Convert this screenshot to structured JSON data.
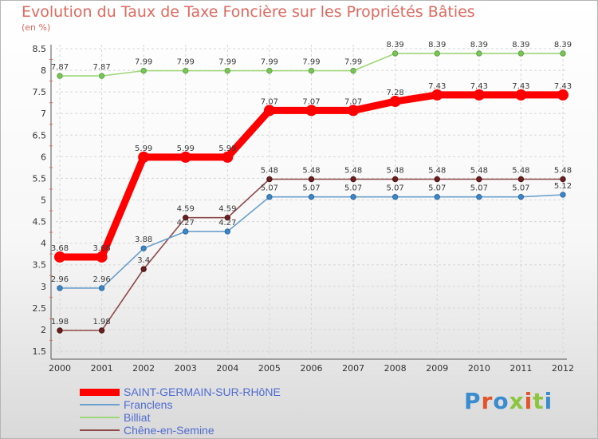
{
  "title": "Evolution du Taux de Taxe Foncière sur les Propriétés Bâties",
  "subtitle": "(en %)",
  "logo": {
    "text": "Proxiti",
    "letter_colors": [
      "#3a8ccf",
      "#e0552a",
      "#3a8ccf",
      "#8cc53f",
      "#e0552a",
      "#8cc53f",
      "#3a8ccf"
    ]
  },
  "chart_data": {
    "type": "line",
    "title": "Evolution du Taux de Taxe Foncière sur les Propriétés Bâties",
    "ylabel": "(en %)",
    "xlabel": "",
    "x": [
      "2000",
      "2001",
      "2002",
      "2003",
      "2004",
      "2005",
      "2006",
      "2007",
      "2008",
      "2009",
      "2010",
      "2011",
      "2012"
    ],
    "ylim": [
      1.5,
      8.5
    ],
    "yticks": [
      "1.5",
      "2",
      "2.5",
      "3",
      "3.5",
      "4",
      "4.5",
      "5",
      "5.5",
      "6",
      "6.5",
      "7",
      "7.5",
      "8",
      "8.5"
    ],
    "grid": true,
    "legend_position": "bottom-left",
    "series": [
      {
        "name": "SAINT-GERMAIN-SUR-RHôNE",
        "color": "#ff0000",
        "values": [
          3.68,
          3.68,
          5.99,
          5.99,
          5.99,
          7.07,
          7.07,
          7.07,
          7.28,
          7.43,
          7.43,
          7.43,
          7.43
        ],
        "labels": [
          "3.68",
          "3.68",
          "5.99",
          "5.99",
          "5.99",
          "7.07",
          "7.07",
          "7.07",
          "7.28",
          "7.43",
          "7.43",
          "7.43",
          "7.43"
        ]
      },
      {
        "name": "Franclens",
        "color": "#6b9fcc",
        "values": [
          2.96,
          2.96,
          3.88,
          4.27,
          4.27,
          5.07,
          5.07,
          5.07,
          5.07,
          5.07,
          5.07,
          5.07,
          5.12
        ],
        "labels": [
          "2.96",
          "2.96",
          "3.88",
          "4.27",
          "4.27",
          "5.07",
          "5.07",
          "5.07",
          "5.07",
          "5.07",
          "5.07",
          "5.07",
          "5.12"
        ]
      },
      {
        "name": "Billiat",
        "color": "#9ed67a",
        "values": [
          7.87,
          7.87,
          7.99,
          7.99,
          7.99,
          7.99,
          7.99,
          7.99,
          8.39,
          8.39,
          8.39,
          8.39,
          8.39
        ],
        "labels": [
          "7.87",
          "7.87",
          "7.99",
          "7.99",
          "7.99",
          "7.99",
          "7.99",
          "7.99",
          "8.39",
          "8.39",
          "8.39",
          "8.39",
          "8.39"
        ]
      },
      {
        "name": "Chêne-en-Semine",
        "color": "#8e4a4a",
        "values": [
          1.98,
          1.98,
          3.4,
          4.59,
          4.59,
          5.48,
          5.48,
          5.48,
          5.48,
          5.48,
          5.48,
          5.48,
          5.48
        ],
        "labels": [
          "1.98",
          "1.98",
          "3.4",
          "4.59",
          "4.59",
          "5.48",
          "5.48",
          "5.48",
          "5.48",
          "5.48",
          "5.48",
          "5.48",
          "5.48"
        ]
      }
    ]
  }
}
